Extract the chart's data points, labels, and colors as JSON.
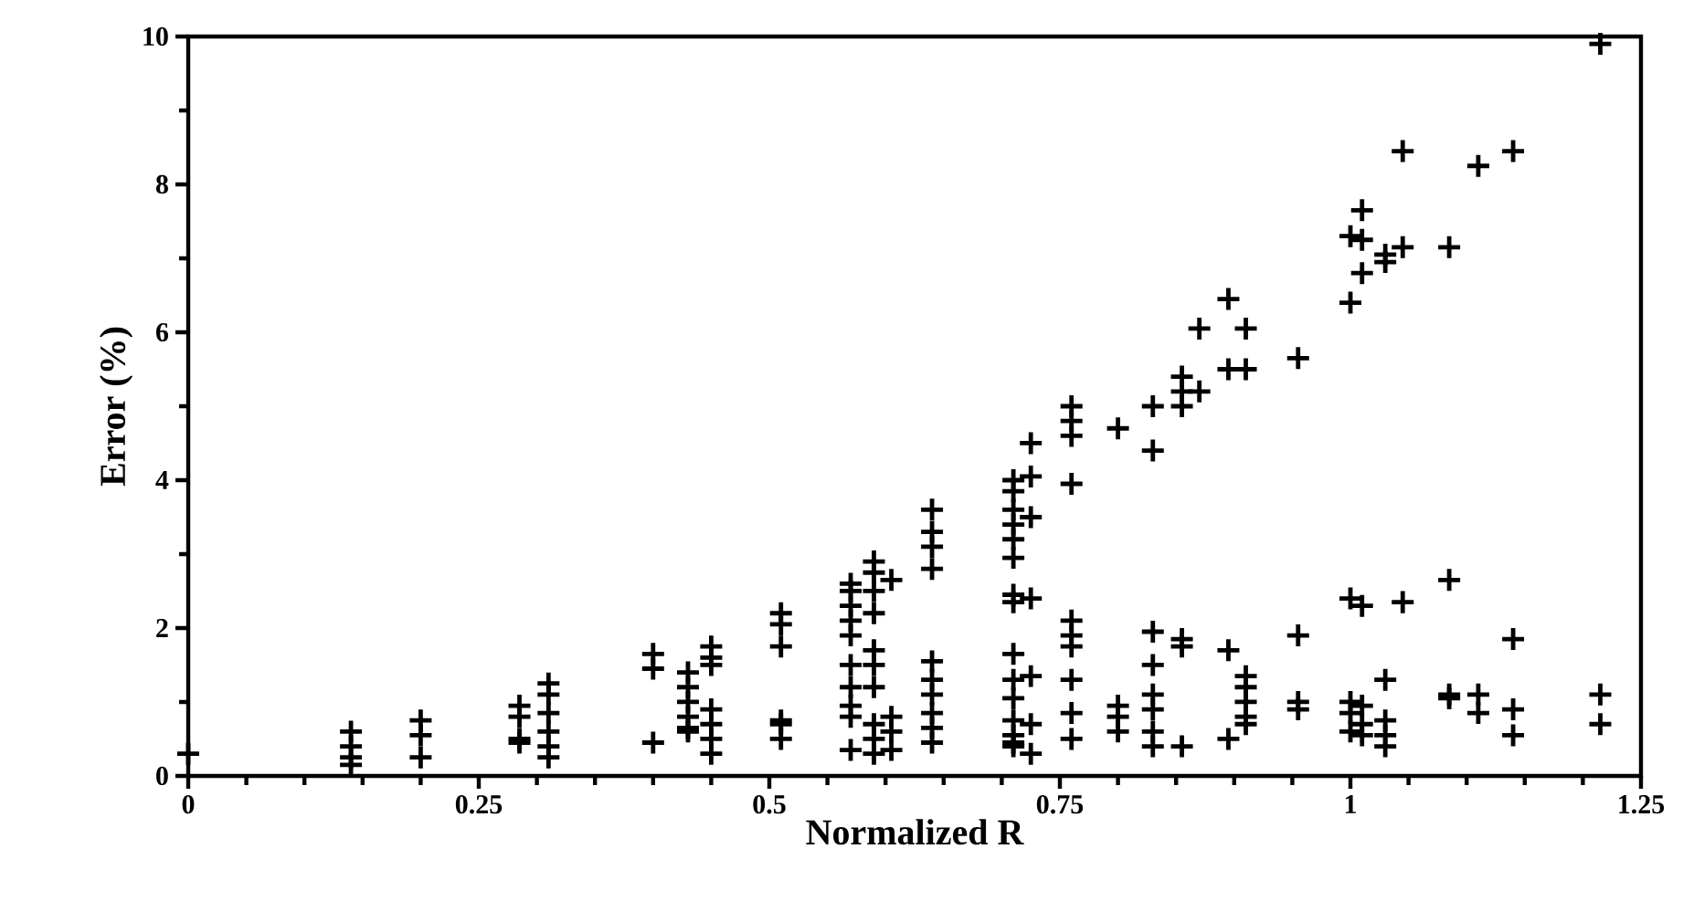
{
  "chart_data": {
    "type": "scatter",
    "xlabel": "Normalized R",
    "ylabel": "Error (%)",
    "xlim": [
      0,
      1.25
    ],
    "ylim": [
      0,
      10
    ],
    "xticks": [
      0,
      0.25,
      0.5,
      0.75,
      1,
      1.25
    ],
    "yticks": [
      0,
      2,
      4,
      6,
      8,
      10
    ],
    "marker": "cross",
    "grid": false,
    "series": [
      {
        "color": "#000000",
        "x": [
          0,
          0.14,
          0.14,
          0.14,
          0.14,
          0.2,
          0.2,
          0.2,
          0.285,
          0.285,
          0.285,
          0.285,
          0.31,
          0.31,
          0.31,
          0.31,
          0.31,
          0.31,
          0.4,
          0.4,
          0.4,
          0.43,
          0.43,
          0.43,
          0.43,
          0.43,
          0.43,
          0.45,
          0.45,
          0.45,
          0.45,
          0.45,
          0.45,
          0.45,
          0.51,
          0.51,
          0.51,
          0.51,
          0.51,
          0.51,
          0.57,
          0.57,
          0.57,
          0.57,
          0.57,
          0.57,
          0.57,
          0.57,
          0.57,
          0.57,
          0.59,
          0.59,
          0.59,
          0.59,
          0.59,
          0.59,
          0.59,
          0.59,
          0.59,
          0.59,
          0.605,
          0.605,
          0.605,
          0.605,
          0.64,
          0.64,
          0.64,
          0.64,
          0.64,
          0.64,
          0.64,
          0.64,
          0.64,
          0.64,
          0.71,
          0.71,
          0.71,
          0.71,
          0.71,
          0.71,
          0.71,
          0.71,
          0.71,
          0.71,
          0.71,
          0.71,
          0.71,
          0.71,
          0.71,
          0.725,
          0.725,
          0.725,
          0.725,
          0.725,
          0.725,
          0.725,
          0.76,
          0.76,
          0.76,
          0.76,
          0.76,
          0.76,
          0.76,
          0.76,
          0.76,
          0.76,
          0.8,
          0.8,
          0.8,
          0.8,
          0.83,
          0.83,
          0.83,
          0.83,
          0.83,
          0.83,
          0.83,
          0.83,
          0.855,
          0.855,
          0.855,
          0.855,
          0.855,
          0.855,
          0.87,
          0.87,
          0.895,
          0.895,
          0.895,
          0.895,
          0.91,
          0.91,
          0.91,
          0.91,
          0.91,
          0.91,
          0.91,
          0.955,
          0.955,
          0.955,
          0.955,
          1.0,
          1.0,
          1.0,
          1.0,
          1.0,
          1.0,
          1.01,
          1.01,
          1.01,
          1.01,
          1.01,
          1.01,
          1.01,
          1.03,
          1.03,
          1.03,
          1.03,
          1.03,
          1.03,
          1.045,
          1.045,
          1.045,
          1.085,
          1.085,
          1.085,
          1.085,
          1.11,
          1.11,
          1.11,
          1.14,
          1.14,
          1.14,
          1.14,
          1.215,
          1.215,
          1.215
        ],
        "values": [
          0.3,
          0.6,
          0.4,
          0.25,
          0.15,
          0.75,
          0.55,
          0.25,
          0.95,
          0.8,
          0.5,
          0.45,
          1.25,
          1.1,
          0.85,
          0.6,
          0.4,
          0.25,
          1.65,
          1.45,
          0.45,
          1.4,
          1.2,
          1.0,
          0.8,
          0.65,
          0.6,
          1.75,
          1.6,
          1.5,
          0.9,
          0.7,
          0.5,
          0.3,
          2.2,
          2.05,
          1.75,
          0.75,
          0.7,
          0.5,
          2.6,
          2.5,
          2.3,
          2.1,
          1.9,
          1.5,
          1.2,
          0.95,
          0.8,
          0.35,
          2.9,
          2.75,
          2.5,
          2.2,
          1.7,
          1.5,
          1.2,
          0.7,
          0.5,
          0.3,
          2.65,
          0.8,
          0.6,
          0.35,
          3.6,
          3.3,
          3.1,
          2.8,
          1.55,
          1.3,
          1.1,
          0.85,
          0.65,
          0.45,
          4.0,
          3.85,
          3.6,
          3.4,
          3.2,
          2.95,
          2.45,
          2.35,
          1.65,
          1.3,
          1.05,
          0.75,
          0.55,
          0.45,
          0.4,
          4.5,
          4.05,
          3.5,
          2.4,
          1.35,
          0.7,
          0.3,
          5.0,
          4.8,
          4.6,
          3.95,
          2.1,
          1.9,
          1.75,
          1.3,
          0.85,
          0.5,
          4.7,
          0.95,
          0.8,
          0.6,
          5.0,
          4.4,
          1.95,
          1.5,
          1.1,
          0.9,
          0.6,
          0.4,
          5.4,
          5.2,
          5.0,
          1.85,
          1.75,
          0.4,
          6.05,
          5.2,
          6.45,
          5.5,
          1.7,
          0.5,
          6.05,
          5.5,
          1.35,
          1.2,
          1.0,
          0.8,
          0.7,
          5.65,
          1.9,
          1.0,
          0.9,
          7.3,
          6.4,
          2.4,
          1.0,
          0.85,
          0.6,
          7.65,
          7.25,
          6.8,
          2.3,
          0.95,
          0.7,
          0.55,
          7.05,
          6.95,
          1.3,
          0.75,
          0.55,
          0.4,
          8.45,
          7.15,
          2.35,
          7.15,
          2.65,
          1.1,
          1.05,
          8.25,
          1.1,
          0.85,
          8.45,
          1.85,
          0.9,
          0.55,
          9.9,
          1.1,
          0.7
        ]
      }
    ]
  }
}
